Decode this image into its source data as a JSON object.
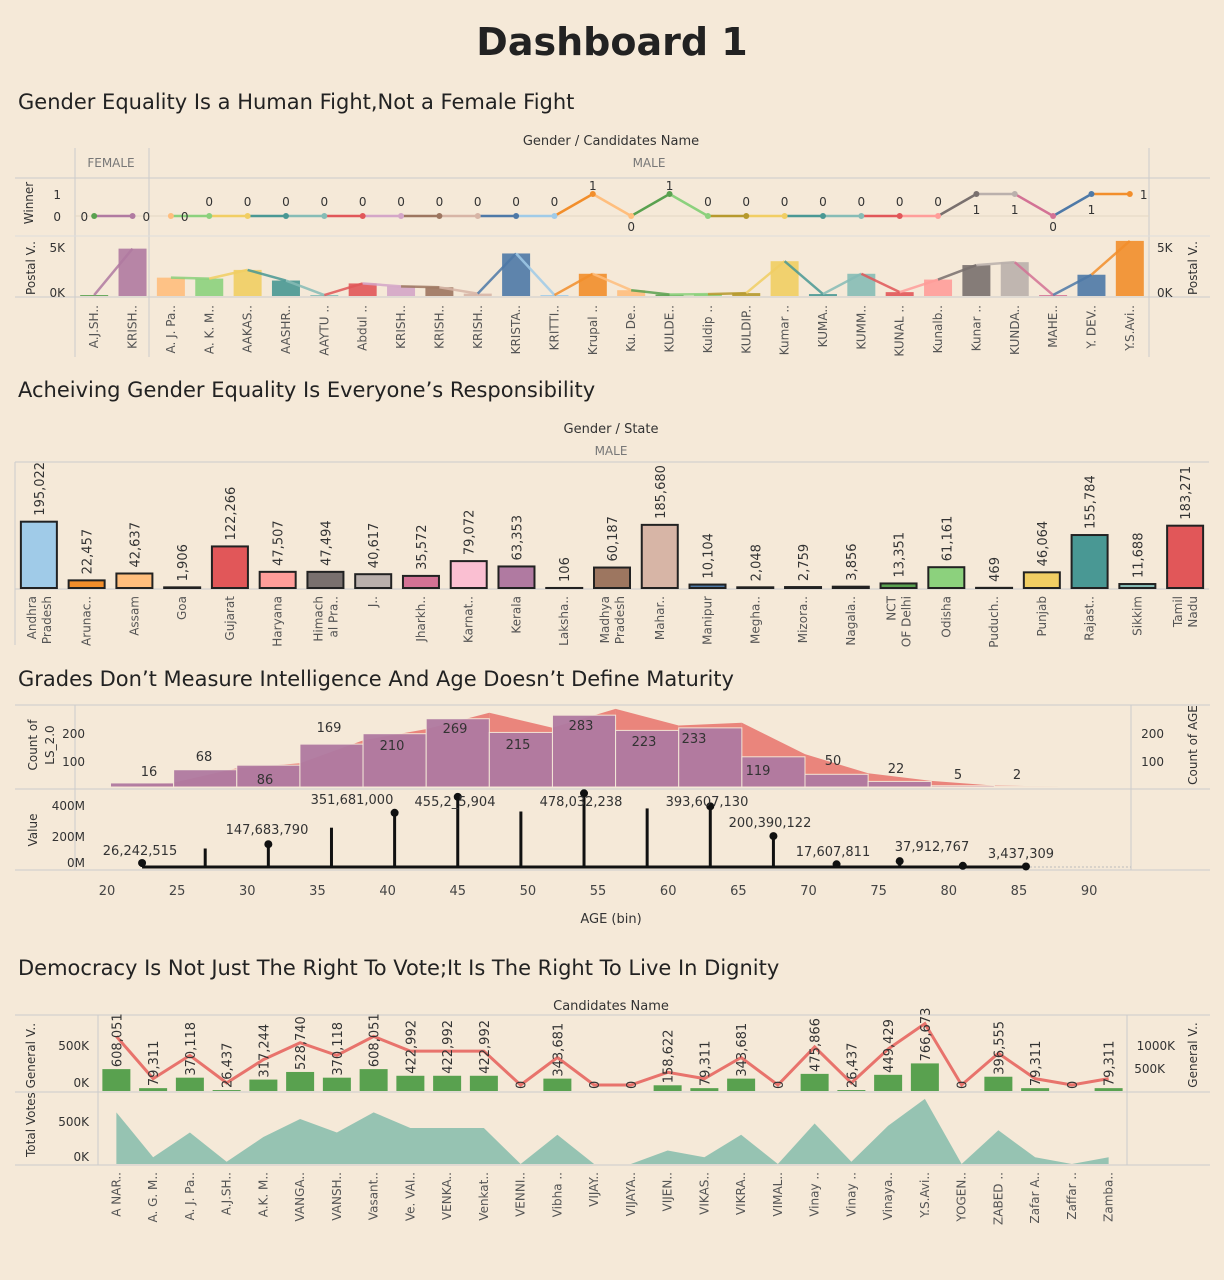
{
  "dashboard_title": "Dashboard 1",
  "sections": {
    "s1": "Gender Equality Is a Human Fight,Not a Female Fight",
    "s2": "Acheiving Gender Equality Is Everyone’s Responsibility",
    "s3": "Grades Don’t Measure Intelligence And Age Doesn’t Define Maturity",
    "s4": "Democracy Is Not Just The Right To Vote;It Is The Right To Live In Dignity"
  },
  "chart_data": [
    {
      "id": "gender_candidates",
      "type": "bar",
      "header": "Gender  /  Candidates Name",
      "groups": [
        "FEMALE",
        "MALE"
      ],
      "panes": [
        {
          "ylabel": "Winner",
          "ticks": [
            "1",
            "0"
          ],
          "mark": "line"
        },
        {
          "ylabel": "Postal V..",
          "ticks": [
            "5K",
            "0K"
          ],
          "right_label": "Postal V..",
          "mark": "bar"
        }
      ],
      "categories": [
        "A.J.SH..",
        "KRISH..",
        "A. J. Pa..",
        "A. K. M..",
        "AAKAS..",
        "AASHR..",
        "AAYTU ..",
        "Abdul ..",
        "KRISH..",
        "KRISH..",
        "KRISH..",
        "KRISTA..",
        "KRITTI..",
        "Krupal ..",
        "Ku. De..",
        "KULDE..",
        "Kuldip ..",
        "KULDIP..",
        "Kumar ..",
        "KUMA..",
        "KUMM..",
        "KUNAL ..",
        "Kunalb..",
        "Kunar ..",
        "KUNDA..",
        "MAHE..",
        "Y. DEV..",
        "Y.S.Avi.."
      ],
      "gender": [
        "FEMALE",
        "FEMALE",
        "MALE",
        "MALE",
        "MALE",
        "MALE",
        "MALE",
        "MALE",
        "MALE",
        "MALE",
        "MALE",
        "MALE",
        "MALE",
        "MALE",
        "MALE",
        "MALE",
        "MALE",
        "MALE",
        "MALE",
        "MALE",
        "MALE",
        "MALE",
        "MALE",
        "MALE",
        "MALE",
        "MALE",
        "MALE",
        "MALE"
      ],
      "winner": [
        0,
        0,
        0,
        0,
        0,
        0,
        0,
        0,
        0,
        0,
        0,
        0,
        0,
        1,
        0,
        1,
        0,
        0,
        0,
        0,
        0,
        0,
        0,
        1,
        1,
        0,
        1,
        1
      ],
      "postal_votes": [
        100,
        4900,
        1900,
        1800,
        2700,
        1600,
        100,
        1300,
        1000,
        900,
        250,
        4400,
        100,
        2300,
        600,
        150,
        200,
        300,
        3600,
        200,
        2300,
        400,
        1700,
        3200,
        3500,
        100,
        2200,
        5700
      ],
      "colors": [
        "#59a14f",
        "#b07aa1",
        "#ffbe7d",
        "#8cd17d",
        "#f1ce63",
        "#499894",
        "#86bcb6",
        "#e15759",
        "#d4a6c8",
        "#9d7660",
        "#d7b5a6",
        "#4e79a7",
        "#a0cbe8",
        "#f28e2b",
        "#ffbe7d",
        "#59a14f",
        "#8cd17d",
        "#b6992d",
        "#f1ce63",
        "#499894",
        "#86bcb6",
        "#e15759",
        "#ff9d9a",
        "#79706e",
        "#bab0ac",
        "#d37295",
        "#4e79a7",
        "#f28e2b"
      ]
    },
    {
      "id": "gender_state",
      "type": "bar",
      "header": "Gender  /  State",
      "groups": [
        "MALE"
      ],
      "categories": [
        "Andhra Pradesh",
        "Arunac..",
        "Assam",
        "Goa",
        "Gujarat",
        "Haryana",
        "Himach al Pra..",
        "J..",
        "Jharkh..",
        "Karnat..",
        "Kerala",
        "Laksha..",
        "Madhya Pradesh",
        "Mahar..",
        "Manipur",
        "Megha..",
        "Mizora..",
        "Nagala..",
        "NCT OF Delhi",
        "Odisha",
        "Puduch..",
        "Punjab",
        "Rajast..",
        "Sikkim",
        "Tamil Nadu"
      ],
      "values": [
        195022,
        22457,
        42637,
        1906,
        122266,
        47507,
        47494,
        40617,
        35572,
        79072,
        63353,
        106,
        60187,
        185680,
        10104,
        2048,
        2759,
        3856,
        13351,
        61161,
        469,
        46064,
        155784,
        11688,
        183271
      ],
      "labels": [
        "195,022",
        "22,457",
        "42,637",
        "1,906",
        "122,266",
        "47,507",
        "47,494",
        "40,617",
        "35,572",
        "79,072",
        "63,353",
        "106",
        "60,187",
        "185,680",
        "10,104",
        "2,048",
        "2,759",
        "3,856",
        "13,351",
        "61,161",
        "469",
        "46,064",
        "155,784",
        "11,688",
        "183,271"
      ],
      "colors": [
        "#a0cbe8",
        "#f28e2b",
        "#ffbe7d",
        "#59a14f",
        "#e15759",
        "#ff9d9a",
        "#79706e",
        "#bab0ac",
        "#d37295",
        "#fabfd2",
        "#b07aa1",
        "#d4a6c8",
        "#9d7660",
        "#d7b5a6",
        "#4e79a7",
        "#a0cbe8",
        "#f28e2b",
        "#ffbe7d",
        "#59a14f",
        "#8cd17d",
        "#b6992d",
        "#f1ce63",
        "#499894",
        "#86bcb6",
        "#e15759"
      ]
    },
    {
      "id": "age_bins",
      "type": "bar",
      "xlabel": "AGE (bin)",
      "x_ticks": [
        "20",
        "25",
        "30",
        "35",
        "40",
        "45",
        "50",
        "55",
        "60",
        "65",
        "70",
        "75",
        "80",
        "85",
        "90"
      ],
      "xlim": [
        20,
        90
      ],
      "top_pane": {
        "ylabel": "Count of LS_2.0",
        "right_label": "Count of AGE",
        "ticks": [
          "200",
          "100"
        ],
        "ylim": [
          0,
          290
        ],
        "bins": [
          22.5,
          27,
          31.5,
          36,
          40.5,
          45,
          49.5,
          54,
          58.5,
          63,
          67.5,
          72,
          76.5,
          81,
          85.5
        ],
        "area_values": [
          16,
          68,
          86,
          169,
          210,
          269,
          215,
          283,
          223,
          233,
          119,
          50,
          22,
          5,
          2
        ],
        "bar_values": [
          16,
          68,
          86,
          169,
          210,
          269,
          215,
          283,
          223,
          233,
          119,
          50,
          22,
          5,
          2
        ],
        "labels": [
          "16",
          "68",
          "86",
          "169",
          "210",
          "269",
          "215",
          "283",
          "223",
          "233",
          "119",
          "50",
          "22",
          "5",
          "2"
        ]
      },
      "bottom_pane": {
        "ylabel": "Value",
        "ticks": [
          "400M",
          "200M",
          "0M"
        ],
        "ylim": [
          0,
          480000000
        ],
        "x": [
          22.5,
          27,
          31.5,
          36,
          40.5,
          45,
          49.5,
          54,
          58.5,
          63,
          67.5,
          72,
          76.5,
          81,
          85.5
        ],
        "values": [
          26242515,
          120000000,
          147683790,
          255000000,
          351681000,
          455245904,
          360000000,
          478032238,
          380000000,
          393607130,
          200390122,
          17607811,
          37912767,
          8000000,
          3437309
        ],
        "labels": [
          "26,242,515",
          "",
          "147,683,790",
          "",
          "351,681,000",
          "455,2_5,904",
          "",
          "478,032,238",
          "",
          "393,607,130",
          "200,390,122",
          "17,607,811",
          "37,912,767",
          "",
          "3,437,309"
        ],
        "dot": [
          true,
          false,
          true,
          false,
          true,
          true,
          false,
          true,
          false,
          true,
          true,
          true,
          true,
          true,
          true
        ]
      }
    },
    {
      "id": "candidates_votes",
      "type": "bar",
      "header": "Candidates Name",
      "panes": [
        {
          "ylabel": "Total Votes General V..",
          "ticks": [
            "500K",
            "0K"
          ],
          "right_label": "General V..",
          "right_ticks": [
            "1000K",
            "500K"
          ],
          "mark": "bar+line"
        },
        {
          "ylabel": "Total Votes General V..",
          "ticks": [
            "500K",
            "0K"
          ],
          "mark": "area"
        }
      ],
      "categories": [
        "A NAR..",
        "A. G. M..",
        "A. J. Pa..",
        "A.J.SH..",
        "A.K. M..",
        "VANGA..",
        "VANSH..",
        "Vasant..",
        "Ve. VAI..",
        "VENKA..",
        "Venkat..",
        "VENNI..",
        "Vibha ..",
        "VIJAY..",
        "VIJAYA..",
        "VIJEN..",
        "VIKAS..",
        "VIKRA..",
        "VIMAL..",
        "Vinay ..",
        "Vinay ..",
        "Vinaya..",
        "Y.S.Avi..",
        "YOGEN..",
        "ZABED ..",
        "Zafar A..",
        "Zaffar ..",
        "Zamba.."
      ],
      "values": [
        608051,
        79311,
        370118,
        26437,
        317244,
        528740,
        370118,
        608051,
        422992,
        422992,
        422992,
        0,
        343681,
        0,
        0,
        158622,
        79311,
        343681,
        0,
        475866,
        26437,
        449429,
        766673,
        0,
        396555,
        79311,
        0,
        79311
      ],
      "labels": [
        "608,051",
        "79,311",
        "370,118",
        "26,437",
        "317,244",
        "528,740",
        "370,118",
        "608,051",
        "422,992",
        "422,992",
        "422,992",
        "0",
        "343,681",
        "0",
        "0",
        "158,622",
        "79,311",
        "343,681",
        "0",
        "475,866",
        "26,437",
        "449,429",
        "766,673",
        "0",
        "396,555",
        "79,311",
        "0",
        "79,311"
      ],
      "bar_color": "#59a14f",
      "line_color": "#e8736c",
      "area_color": "#8cbfae"
    }
  ]
}
